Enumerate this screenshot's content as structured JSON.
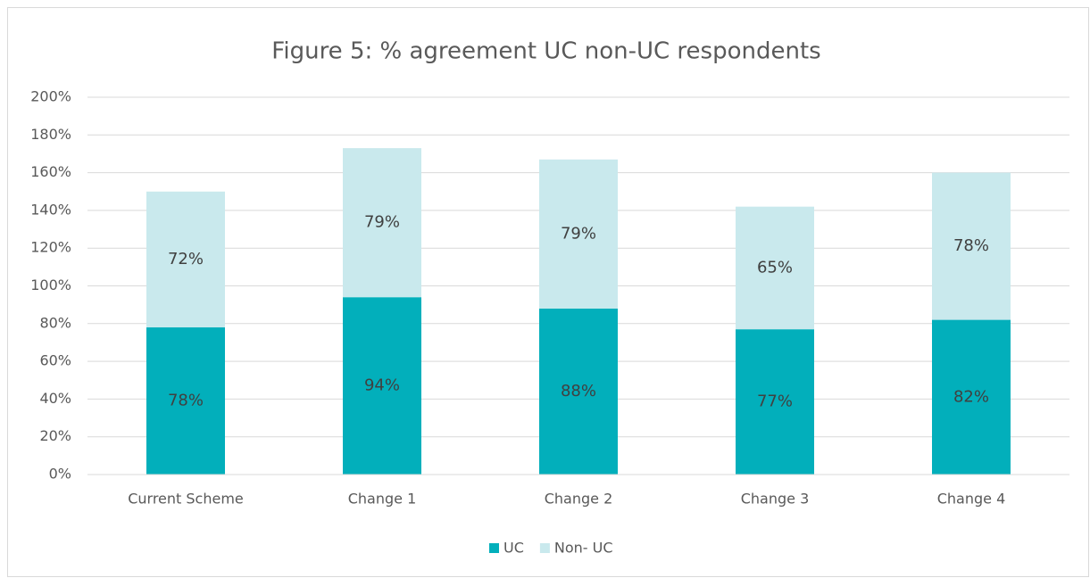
{
  "chart_data": {
    "type": "stacked_bar",
    "title": "Figure 5: % agreement UC non-UC respondents",
    "categories": [
      "Current Scheme",
      "Change 1",
      "Change 2",
      "Change 3",
      "Change 4"
    ],
    "series": [
      {
        "name": "UC",
        "color": "#02afbb",
        "values": [
          78,
          94,
          88,
          77,
          82
        ],
        "value_labels": [
          "78%",
          "94%",
          "88%",
          "77%",
          "82%"
        ]
      },
      {
        "name": "Non- UC",
        "color": "#c9e9ed",
        "values": [
          72,
          79,
          79,
          65,
          78
        ],
        "value_labels": [
          "72%",
          "79%",
          "79%",
          "65%",
          "78%"
        ]
      }
    ],
    "ylim": [
      0,
      200
    ],
    "yticks": [
      {
        "value": 0,
        "label": "0%"
      },
      {
        "value": 20,
        "label": "20%"
      },
      {
        "value": 40,
        "label": "40%"
      },
      {
        "value": 60,
        "label": "60%"
      },
      {
        "value": 80,
        "label": "80%"
      },
      {
        "value": 100,
        "label": "100%"
      },
      {
        "value": 120,
        "label": "120%"
      },
      {
        "value": 140,
        "label": "140%"
      },
      {
        "value": 160,
        "label": "160%"
      },
      {
        "value": 180,
        "label": "180%"
      },
      {
        "value": 200,
        "label": "200%"
      }
    ],
    "grid": true,
    "legend": "bottom"
  }
}
